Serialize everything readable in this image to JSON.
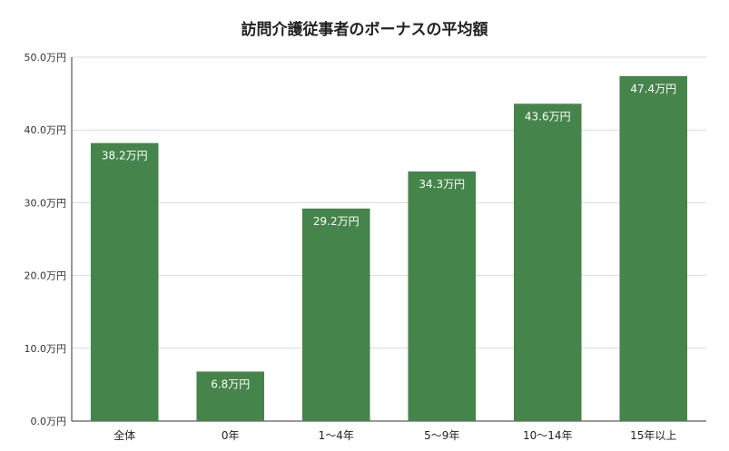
{
  "chart_data": {
    "type": "bar",
    "title": "訪問介護従事者のボーナスの平均額",
    "categories": [
      "全体",
      "0年",
      "1〜4年",
      "5〜9年",
      "10〜14年",
      "15年以上"
    ],
    "values": [
      38.2,
      6.8,
      29.2,
      34.3,
      43.6,
      47.4
    ],
    "value_labels": [
      "38.2万円",
      "6.8万円",
      "29.2万円",
      "34.3万円",
      "43.6万円",
      "47.4万円"
    ],
    "yticks": [
      0,
      10,
      20,
      30,
      40,
      50
    ],
    "ytick_labels": [
      "0.0万円",
      "10.0万円",
      "20.0万円",
      "30.0万円",
      "40.0万円",
      "50.0万円"
    ],
    "ylim": [
      0,
      50
    ],
    "xlabel": "",
    "ylabel": "",
    "grid": true,
    "bar_color": "#45844a"
  }
}
